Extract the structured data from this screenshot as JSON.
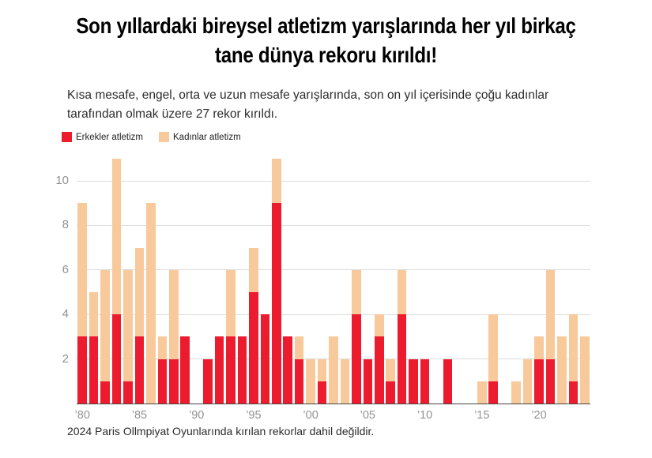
{
  "header": {
    "title_lines": [
      "Son yıllardaki bireysel atletizm yarışlarında her yıl birkaç",
      "tane dünya rekoru kırıldı!"
    ],
    "subtitle_lines": [
      "Kısa mesafe, engel, orta ve uzun mesafe yarışlarında, son on yıl içerisinde çoğu kadınlar",
      "tarafından olmak üzere 27 rekor kırıldı."
    ]
  },
  "legend": {
    "items": [
      {
        "label": "Erkekler atletizm",
        "color": "#ed1b2e"
      },
      {
        "label": "Kadınlar atletizm",
        "color": "#f8c99b"
      }
    ]
  },
  "footnote": "2024 Paris Ollmpiyat Oyunlarında kırılan rekorlar dahil değildir.",
  "colors": {
    "men_red": "#ed1b2e",
    "women_peach": "#f8c99b",
    "gridline": "#dddddd",
    "axis_line": "#454545",
    "tick_label": "#929292",
    "title_text": "#000000",
    "body_text": "#2c2c2c",
    "background": "#ffffff"
  },
  "chart_data": {
    "type": "bar",
    "stacked": true,
    "title": "Son yıllardaki bireysel atletizm yarışlarında her yıl birkaç tane dünya rekoru kırıldı!",
    "subtitle": "Kısa mesafe, engel, orta ve uzun mesafe yarışlarında, son on yıl içerisinde çoğu kadınlar tarafından olmak üzere 27 rekor kırıldı.",
    "xlabel": "",
    "ylabel": "",
    "x": [
      1980,
      1981,
      1982,
      1983,
      1984,
      1985,
      1986,
      1987,
      1988,
      1989,
      1990,
      1991,
      1992,
      1993,
      1994,
      1995,
      1996,
      1997,
      1998,
      1999,
      2000,
      2001,
      2002,
      2003,
      2004,
      2005,
      2006,
      2007,
      2008,
      2009,
      2010,
      2011,
      2012,
      2013,
      2014,
      2015,
      2016,
      2017,
      2018,
      2019,
      2020,
      2021,
      2022,
      2023,
      2024
    ],
    "series": [
      {
        "name": "Erkekler atletizm",
        "color": "#ed1b2e",
        "values": [
          3,
          3,
          1,
          4,
          1,
          3,
          0,
          2,
          2,
          3,
          0,
          2,
          3,
          3,
          3,
          5,
          4,
          9,
          3,
          2,
          0,
          1,
          0,
          0,
          4,
          2,
          3,
          1,
          4,
          2,
          2,
          0,
          2,
          0,
          0,
          0,
          1,
          0,
          0,
          0,
          2,
          2,
          0,
          1,
          0
        ]
      },
      {
        "name": "Kadınlar atletizm",
        "color": "#f8c99b",
        "values": [
          6,
          2,
          5,
          7,
          5,
          4,
          9,
          1,
          4,
          0,
          0,
          0,
          0,
          3,
          0,
          2,
          0,
          2,
          0,
          1,
          2,
          1,
          3,
          2,
          2,
          0,
          1,
          1,
          2,
          0,
          0,
          0,
          0,
          0,
          0,
          1,
          3,
          0,
          1,
          2,
          1,
          4,
          3,
          3,
          3
        ]
      }
    ],
    "x_ticks": [
      {
        "year": 1980,
        "label": "’80"
      },
      {
        "year": 1985,
        "label": "’85"
      },
      {
        "year": 1990,
        "label": "’90"
      },
      {
        "year": 1995,
        "label": "’95"
      },
      {
        "year": 2000,
        "label": "’00"
      },
      {
        "year": 2005,
        "label": "’05"
      },
      {
        "year": 2010,
        "label": "’10"
      },
      {
        "year": 2015,
        "label": "’15"
      },
      {
        "year": 2020,
        "label": "’20"
      }
    ],
    "y_ticks": [
      2,
      4,
      6,
      8,
      10
    ],
    "ylim": [
      0,
      11
    ],
    "grid": "horizontal",
    "legend_position": "top-left"
  }
}
